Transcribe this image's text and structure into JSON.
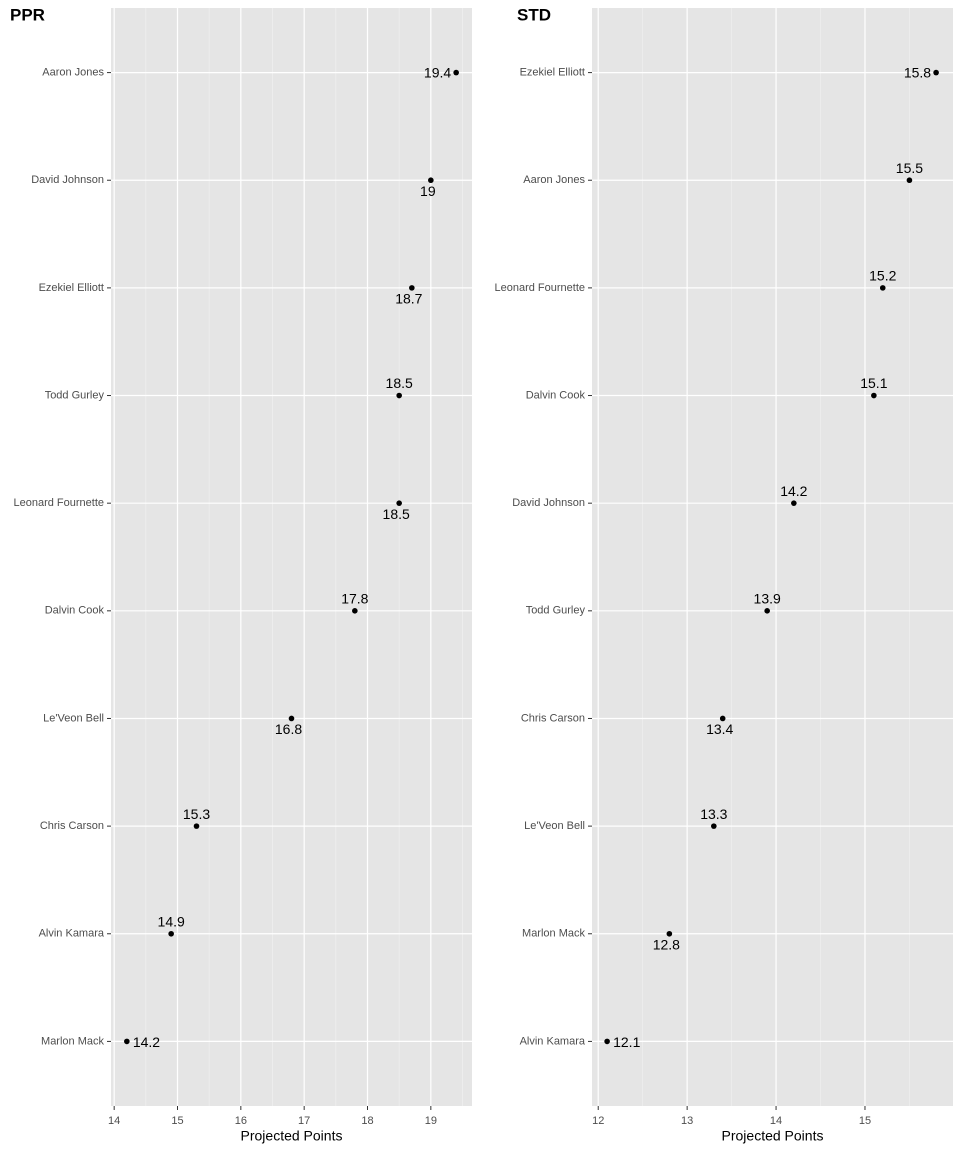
{
  "chart_data": [
    {
      "type": "dot",
      "title": "PPR",
      "x_label": "Projected Points",
      "categories": [
        "Aaron Jones",
        "David Johnson",
        "Ezekiel Elliott",
        "Todd Gurley",
        "Leonard Fournette",
        "Dalvin Cook",
        "Le'Veon Bell",
        "Chris Carson",
        "Alvin Kamara",
        "Marlon Mack"
      ],
      "values": [
        19.4,
        19,
        18.7,
        18.5,
        18.5,
        17.8,
        16.8,
        15.3,
        14.9,
        14.2
      ],
      "color": "#000000",
      "xlim": [
        13.95,
        19.65
      ],
      "xticks": [
        14,
        15,
        16,
        17,
        18,
        19
      ],
      "grid": true
    },
    {
      "type": "dot",
      "title": "STD",
      "x_label": "Projected Points",
      "categories": [
        "Ezekiel Elliott",
        "Aaron Jones",
        "Leonard Fournette",
        "Dalvin Cook",
        "David Johnson",
        "Todd Gurley",
        "Chris Carson",
        "Le'Veon Bell",
        "Marlon Mack",
        "Alvin Kamara"
      ],
      "values": [
        15.8,
        15.5,
        15.2,
        15.1,
        14.2,
        13.9,
        13.4,
        13.3,
        12.8,
        12.1
      ],
      "color": "#000000",
      "xlim": [
        11.93,
        15.99
      ],
      "xticks": [
        12,
        13,
        14,
        15
      ],
      "grid": true
    }
  ]
}
